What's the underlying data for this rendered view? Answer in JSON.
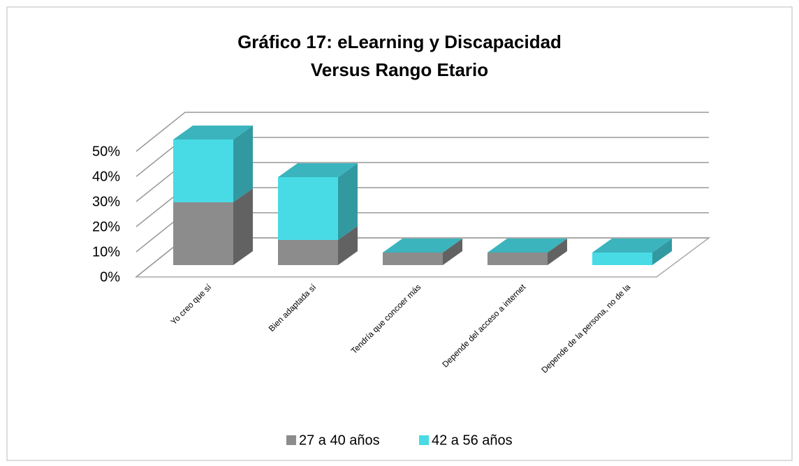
{
  "chart_data": {
    "type": "bar3d_stacked",
    "title": [
      "Gráfico 17: eLearning y Discapacidad",
      "Versus Rango Etario"
    ],
    "categories": [
      "Yo creo que sí",
      "Bien adaptada sí",
      "Tendría que concoer más",
      "Depende del acceso a internet",
      "Depende de la persona, no de la"
    ],
    "series": [
      {
        "name": "27 a 40 años",
        "color": "#8c8c8c",
        "values": [
          25,
          10,
          5,
          5,
          0
        ]
      },
      {
        "name": "42 a 56 años",
        "color": "#48dbe6",
        "values": [
          25,
          25,
          0,
          0,
          5
        ]
      }
    ],
    "ylim": [
      0,
      50
    ],
    "yticks": [
      {
        "value": 0,
        "label": "0%"
      },
      {
        "value": 10,
        "label": "10%"
      },
      {
        "value": 20,
        "label": "20%"
      },
      {
        "value": 30,
        "label": "30%"
      },
      {
        "value": 40,
        "label": "40%"
      },
      {
        "value": 50,
        "label": "50%"
      }
    ],
    "grid": true
  }
}
